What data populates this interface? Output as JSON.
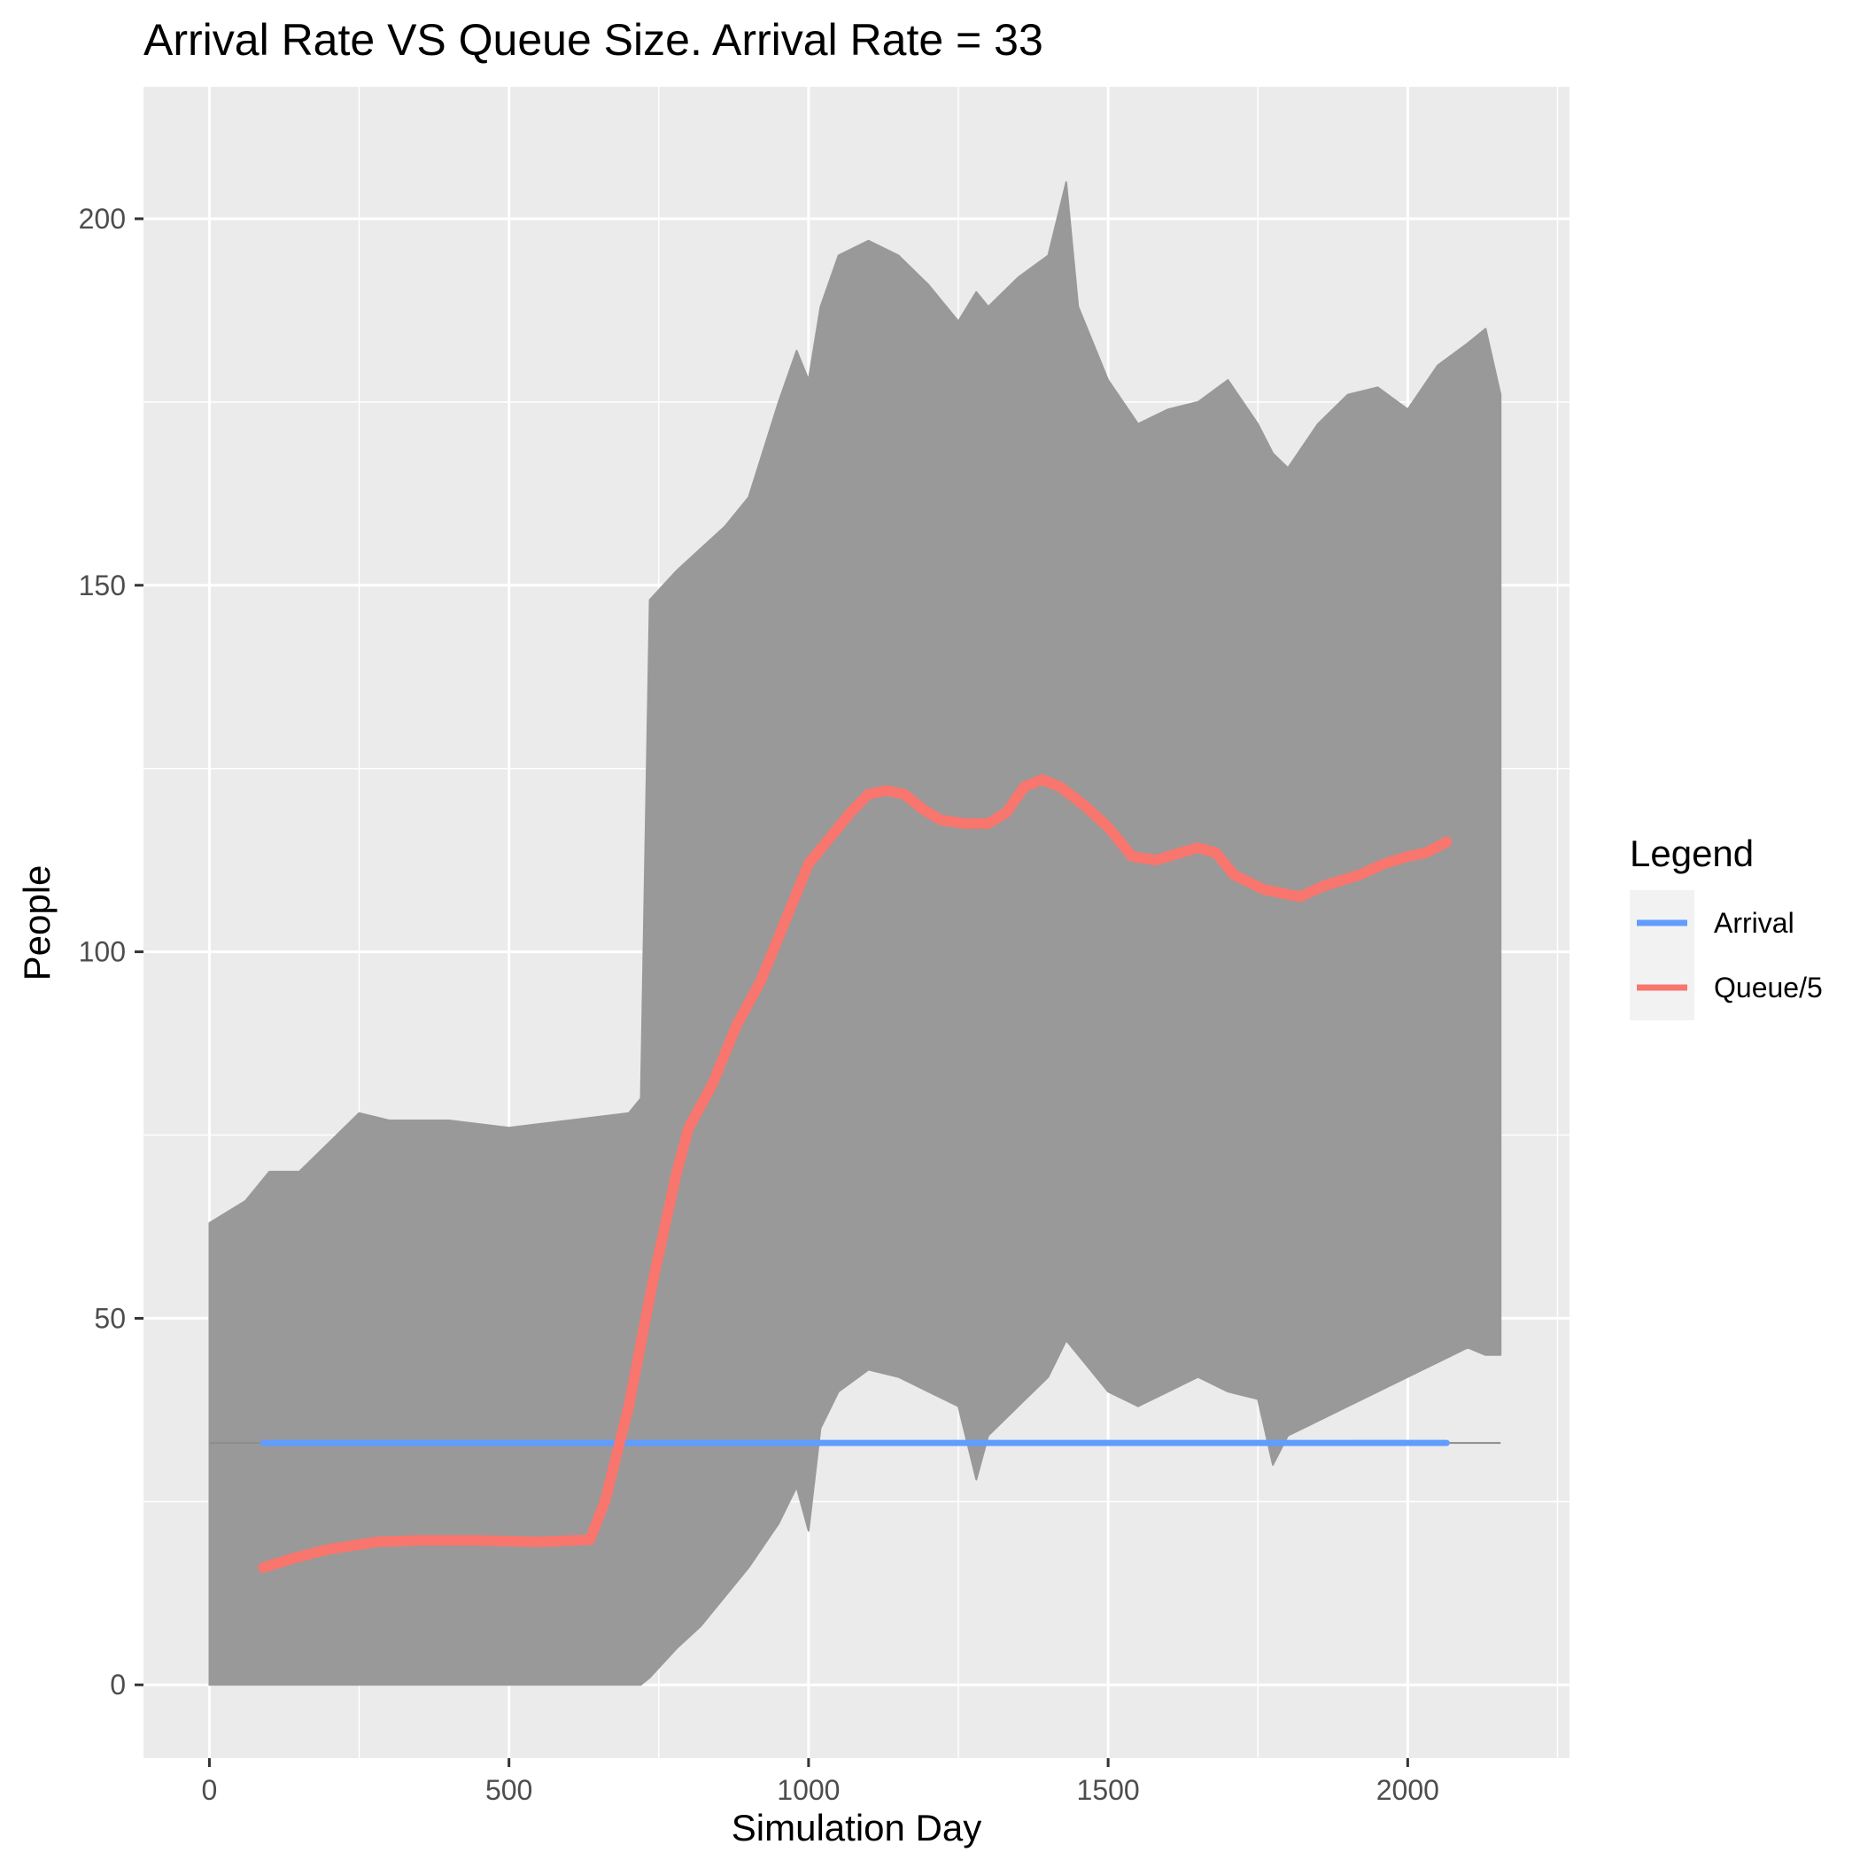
{
  "chart_data": {
    "type": "line",
    "title": "Arrival Rate VS Queue Size. Arrival Rate = 33",
    "xlabel": "Simulation Day",
    "ylabel": "People",
    "xlim": [
      -110,
      2270
    ],
    "ylim": [
      -10,
      218
    ],
    "x_ticks": [
      0,
      500,
      1000,
      1500,
      2000
    ],
    "y_ticks": [
      0,
      50,
      100,
      150,
      200
    ],
    "x_tick_labels": [
      "0",
      "500",
      "1000",
      "1500",
      "2000"
    ],
    "y_tick_labels": [
      "0",
      "50",
      "100",
      "150",
      "200"
    ],
    "grid": true,
    "legend": {
      "title": "Legend",
      "position": "right",
      "entries": [
        {
          "label": "Arrival",
          "color": "#619cff"
        },
        {
          "label": "Queue/5",
          "color": "#f8766d"
        }
      ]
    },
    "colors": {
      "panel": "#ebebeb",
      "grid": "#ffffff",
      "raw_series": "#999999",
      "arrival": "#619cff",
      "queue": "#f8766d"
    },
    "series": [
      {
        "name": "Arrival",
        "color": "#619cff",
        "x": [
          90,
          2065
        ],
        "y": [
          33,
          33
        ]
      },
      {
        "name": "Queue/5",
        "color": "#f8766d",
        "x": [
          90,
          150,
          200,
          280,
          350,
          450,
          550,
          635,
          660,
          700,
          740,
          780,
          800,
          840,
          880,
          920,
          960,
          1000,
          1040,
          1070,
          1100,
          1130,
          1160,
          1190,
          1220,
          1260,
          1300,
          1330,
          1360,
          1390,
          1420,
          1460,
          1500,
          1540,
          1580,
          1620,
          1650,
          1680,
          1710,
          1760,
          1820,
          1860,
          1920,
          1960,
          2000,
          2030,
          2065
        ],
        "y": [
          16,
          17.5,
          18.5,
          19.5,
          19.7,
          19.7,
          19.5,
          19.8,
          25,
          38,
          55,
          70,
          76,
          82,
          90,
          96,
          104,
          112,
          116,
          119,
          121.5,
          122,
          121.5,
          119.5,
          118,
          117.5,
          117.5,
          119,
          122.5,
          123.5,
          122.5,
          120,
          117,
          113,
          112.5,
          113.5,
          114.2,
          113.5,
          110.5,
          108.5,
          107.5,
          109,
          110.5,
          112,
          113,
          113.5,
          115
        ]
      }
    ],
    "raw_band": {
      "x": [
        0,
        60,
        100,
        150,
        200,
        250,
        300,
        400,
        500,
        600,
        700,
        720,
        735,
        780,
        820,
        860,
        900,
        950,
        980,
        1000,
        1020,
        1050,
        1100,
        1150,
        1200,
        1250,
        1280,
        1300,
        1350,
        1400,
        1430,
        1450,
        1500,
        1550,
        1600,
        1650,
        1700,
        1750,
        1775,
        1800,
        1850,
        1900,
        1950,
        2000,
        2050,
        2100,
        2130,
        2155
      ],
      "upper": [
        63,
        66,
        70,
        70,
        74,
        78,
        77,
        77,
        76,
        77,
        78,
        80,
        148,
        152,
        155,
        158,
        162,
        175,
        182,
        178,
        188,
        195,
        197,
        195,
        191,
        186,
        190,
        188,
        192,
        195,
        205,
        188,
        178,
        172,
        174,
        175,
        178,
        172,
        168,
        166,
        172,
        176,
        177,
        174,
        180,
        183,
        185,
        176
      ],
      "lower": [
        0,
        0,
        0,
        0,
        0,
        0,
        0,
        0,
        0,
        0,
        0,
        0,
        1,
        5,
        8,
        12,
        16,
        22,
        27,
        21,
        35,
        40,
        43,
        42,
        40,
        38,
        28,
        34,
        38,
        42,
        47,
        45,
        40,
        38,
        40,
        42,
        40,
        39,
        30,
        34,
        36,
        38,
        40,
        42,
        44,
        46,
        45,
        45
      ]
    }
  }
}
